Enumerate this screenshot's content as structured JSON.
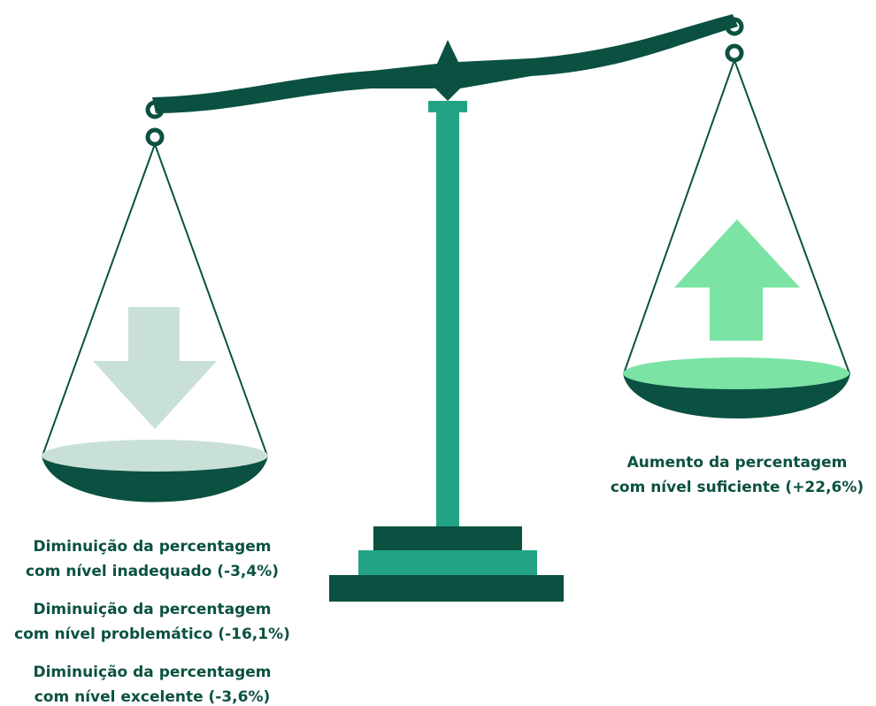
{
  "left_labels": [
    {
      "lines": [
        "Diminuição da percentagem",
        "com nível inadequado (-3,4%)"
      ]
    },
    {
      "lines": [
        "Diminuição da percentagem",
        "com nível problemático (-16,1%)"
      ]
    },
    {
      "lines": [
        "Diminuição da percentagem",
        "com nível excelente (-3,6%)"
      ]
    }
  ],
  "right_label": {
    "lines": [
      "Aumento da percentagem",
      "com nível suficiente (+22,6%)"
    ]
  }
}
